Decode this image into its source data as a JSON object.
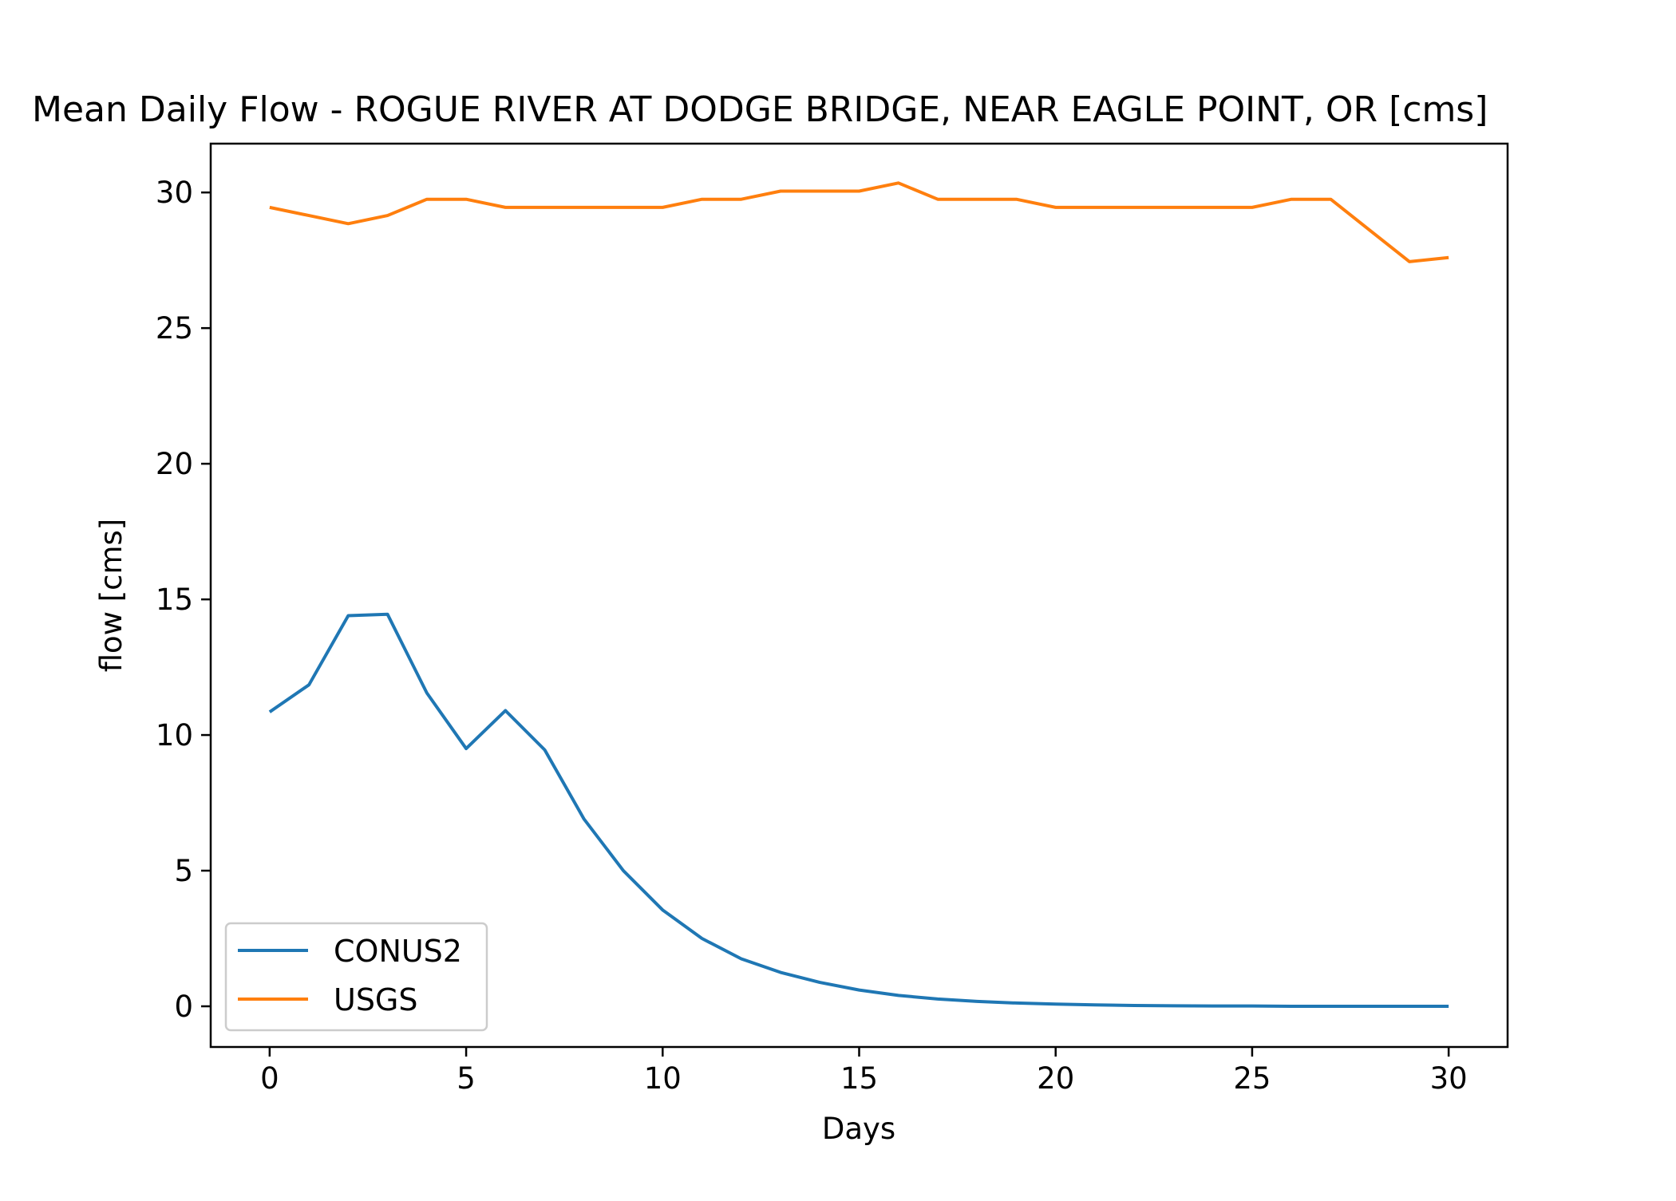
{
  "chart_data": {
    "type": "line",
    "title": "Mean Daily Flow - ROGUE RIVER AT DODGE BRIDGE, NEAR EAGLE POINT, OR [cms]",
    "xlabel": "Days",
    "ylabel": "flow [cms]",
    "xlim": [
      -1.5,
      31.5
    ],
    "ylim": [
      -1.5,
      31.8
    ],
    "xticks": [
      0,
      5,
      10,
      15,
      20,
      25,
      30
    ],
    "yticks": [
      0,
      5,
      10,
      15,
      20,
      25,
      30
    ],
    "grid": false,
    "legend_position": "lower-left",
    "x": [
      0,
      1,
      2,
      3,
      4,
      5,
      6,
      7,
      8,
      9,
      10,
      11,
      12,
      13,
      14,
      15,
      16,
      17,
      18,
      19,
      20,
      21,
      22,
      23,
      24,
      25,
      26,
      27,
      28,
      29,
      30
    ],
    "series": [
      {
        "name": "CONUS2",
        "color": "#1f77b4",
        "values": [
          10.85,
          11.85,
          14.4,
          14.45,
          11.55,
          9.5,
          10.9,
          9.45,
          6.9,
          5.0,
          3.55,
          2.5,
          1.75,
          1.25,
          0.88,
          0.6,
          0.4,
          0.27,
          0.18,
          0.12,
          0.08,
          0.05,
          0.03,
          0.02,
          0.01,
          0.01,
          0.0,
          0.0,
          0.0,
          0.0,
          0.0
        ]
      },
      {
        "name": "USGS",
        "color": "#ff7f0e",
        "values": [
          29.45,
          29.15,
          28.85,
          29.15,
          29.75,
          29.75,
          29.45,
          29.45,
          29.45,
          29.45,
          29.45,
          29.75,
          29.75,
          30.05,
          30.05,
          30.05,
          30.35,
          29.75,
          29.75,
          29.75,
          29.45,
          29.45,
          29.45,
          29.45,
          29.45,
          29.45,
          29.75,
          29.75,
          28.6,
          27.45,
          27.6
        ]
      }
    ]
  }
}
